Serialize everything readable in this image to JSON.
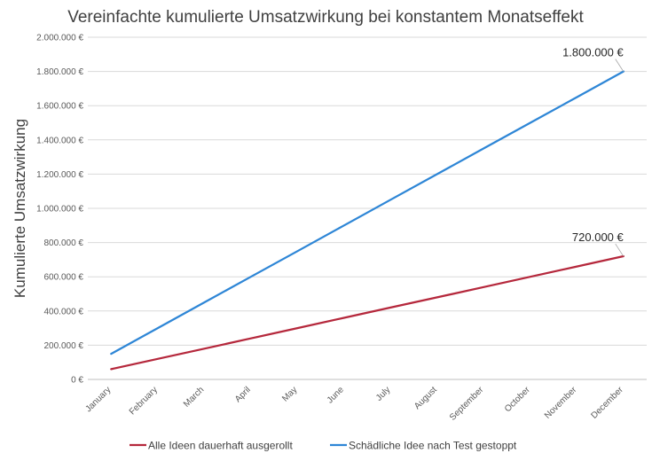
{
  "chart_data": {
    "type": "line",
    "title": "Vereinfachte kumulierte Umsatzwirkung bei konstantem Monatseffekt",
    "xlabel": "",
    "ylabel": "Kumulierte Umsatzwirkung",
    "categories": [
      "January",
      "February",
      "March",
      "April",
      "May",
      "June",
      "July",
      "August",
      "September",
      "October",
      "November",
      "December"
    ],
    "ylim": [
      0,
      2000000
    ],
    "yticks": [
      0,
      200000,
      400000,
      600000,
      800000,
      1000000,
      1200000,
      1400000,
      1600000,
      1800000,
      2000000
    ],
    "ytick_labels": [
      "0 €",
      "200.000 €",
      "400.000 €",
      "600.000 €",
      "800.000 €",
      "1.000.000 €",
      "1.200.000 €",
      "1.400.000 €",
      "1.600.000 €",
      "1.800.000 €",
      "2.000.000 €"
    ],
    "grid": true,
    "legend_position": "bottom",
    "series": [
      {
        "name": "Alle Ideen dauerhaft ausgerollt",
        "color": "#b5283c",
        "values": [
          60000,
          120000,
          180000,
          240000,
          300000,
          360000,
          420000,
          480000,
          540000,
          600000,
          660000,
          720000
        ]
      },
      {
        "name": "Schädliche Idee nach Test gestoppt",
        "color": "#2e86d6",
        "values": [
          150000,
          300000,
          450000,
          600000,
          750000,
          900000,
          1050000,
          1200000,
          1350000,
          1500000,
          1650000,
          1800000
        ]
      }
    ],
    "annotations": [
      {
        "series": 1,
        "index": 11,
        "text": "1.800.000 €"
      },
      {
        "series": 0,
        "index": 11,
        "text": "720.000 €"
      }
    ],
    "gridline_color": "#d9d9d9",
    "axis_color": "#bfbfbf"
  }
}
